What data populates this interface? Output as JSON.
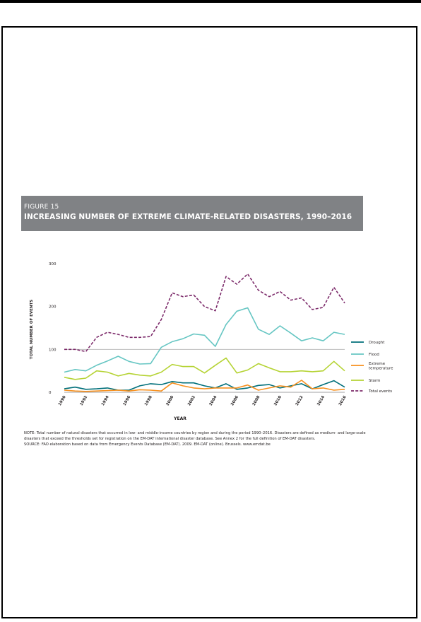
{
  "figure": {
    "label": "FIGURE 15",
    "title": "INCREASING NUMBER OF EXTREME CLIMATE-RELATED DISASTERS, 1990–2016"
  },
  "notes": {
    "note_line1": "NOTE: Total number of natural disasters that occurred in low- and middle-income countries by region and during the period 1990–2016. Disasters are defined as medium- and large-scale",
    "note_line2": "disasters that exceed the thresholds set for registration on the EM-DAT international disaster database. See Annex 2 for the full definition of EM-DAT disasters.",
    "source": "SOURCE: FAO elaboration based on data from Emergency Events Database (EM-DAT). 2009. EM-DAT (online). Brussels. www.emdat.be"
  },
  "colors": {
    "banner": "#808285",
    "drought": "#006f7a",
    "flood": "#66c6c3",
    "extreme_temperature": "#f7901e",
    "storm": "#b5d334",
    "total_events": "#7c2a6a",
    "reference_line": "#b3b3b3"
  },
  "chart_data": {
    "type": "line",
    "xlabel": "YEAR",
    "ylabel": "TOTAL NUMBER OF EVENTS",
    "x": [
      1990,
      1991,
      1992,
      1993,
      1994,
      1995,
      1996,
      1997,
      1998,
      1999,
      2000,
      2001,
      2002,
      2003,
      2004,
      2005,
      2006,
      2007,
      2008,
      2009,
      2010,
      2011,
      2012,
      2013,
      2014,
      2015,
      2016
    ],
    "x_tick_labels": [
      "1990",
      "1992",
      "1994",
      "1996",
      "1998",
      "2000",
      "2002",
      "2004",
      "2006",
      "2008",
      "2010",
      "2012",
      "2014",
      "2016"
    ],
    "y_tick_labels": [
      "0",
      "100",
      "200",
      "300"
    ],
    "ylim": [
      0,
      300
    ],
    "grid": false,
    "reference_line_y": 100,
    "legend_position": "right",
    "series": [
      {
        "name": "Drought",
        "key": "drought",
        "dash": false,
        "values": [
          8,
          12,
          7,
          8,
          10,
          5,
          5,
          15,
          20,
          18,
          25,
          22,
          22,
          15,
          10,
          20,
          7,
          10,
          16,
          18,
          10,
          15,
          20,
          8,
          18,
          27,
          12
        ]
      },
      {
        "name": "Flood",
        "key": "flood",
        "dash": false,
        "values": [
          47,
          53,
          50,
          63,
          73,
          84,
          72,
          66,
          67,
          105,
          118,
          125,
          136,
          133,
          107,
          158,
          189,
          197,
          147,
          135,
          155,
          138,
          120,
          127,
          120,
          140,
          135
        ]
      },
      {
        "name": "Extreme temperature",
        "key": "extreme_temperature",
        "dash": false,
        "values": [
          5,
          3,
          2,
          3,
          4,
          5,
          3,
          6,
          5,
          3,
          22,
          15,
          10,
          8,
          10,
          10,
          10,
          17,
          5,
          10,
          15,
          12,
          28,
          8,
          10,
          5,
          7
        ]
      },
      {
        "name": "Storm",
        "key": "storm",
        "dash": false,
        "values": [
          35,
          30,
          33,
          50,
          47,
          38,
          44,
          40,
          38,
          47,
          65,
          60,
          60,
          45,
          63,
          80,
          45,
          52,
          67,
          57,
          48,
          48,
          50,
          48,
          50,
          72,
          50
        ]
      },
      {
        "name": "Total events",
        "key": "total_events",
        "dash": true,
        "values": [
          100,
          100,
          95,
          128,
          140,
          135,
          128,
          128,
          130,
          170,
          232,
          223,
          227,
          200,
          190,
          270,
          252,
          276,
          238,
          223,
          235,
          215,
          220,
          193,
          198,
          245,
          208
        ]
      }
    ]
  }
}
